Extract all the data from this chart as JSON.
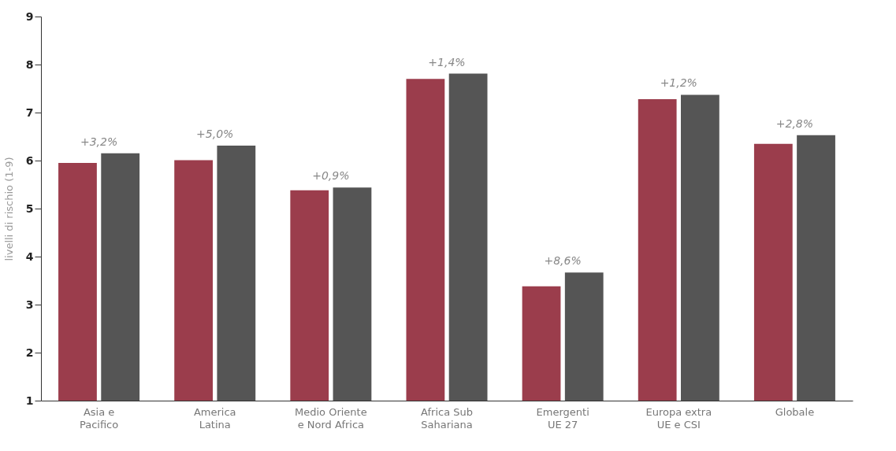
{
  "chart_data": {
    "type": "bar",
    "ylabel": "livelli di rischio (1-9)",
    "categories": [
      "Asia e\nPacifico",
      "America\nLatina",
      "Medio Oriente\ne Nord Africa",
      "Africa Sub\nSahariana",
      "Emergenti\nUE 27",
      "Europa extra\nUE e CSI",
      "Globale"
    ],
    "series": [
      {
        "color": "#9b3d4c",
        "values": [
          5.95,
          6.01,
          5.38,
          7.7,
          3.38,
          7.28,
          6.35
        ]
      },
      {
        "color": "#555555",
        "values": [
          6.15,
          6.31,
          5.44,
          7.81,
          3.67,
          7.37,
          6.53
        ]
      }
    ],
    "ylim": [
      1,
      9
    ],
    "yticks": [
      1,
      2,
      3,
      4,
      5,
      6,
      7,
      8,
      9
    ],
    "grid": false,
    "legend": false,
    "annotations": [
      {
        "text": "+3,2%",
        "x": "Asia e\nPacifico",
        "y": 6.15
      },
      {
        "text": "+5,0%",
        "x": "America\nLatina",
        "y": 6.31
      },
      {
        "text": "+0,9%",
        "x": "Medio Oriente\ne Nord Africa",
        "y": 5.44
      },
      {
        "text": "+1,4%",
        "x": "Africa Sub\nSahariana",
        "y": 7.81
      },
      {
        "text": "+8,6%",
        "x": "Emergenti\nUE 27",
        "y": 3.67
      },
      {
        "text": "+1,2%",
        "x": "Europa extra\nUE e CSI",
        "y": 7.37
      },
      {
        "text": "+2,8%",
        "x": "Globale",
        "y": 6.53
      }
    ]
  }
}
